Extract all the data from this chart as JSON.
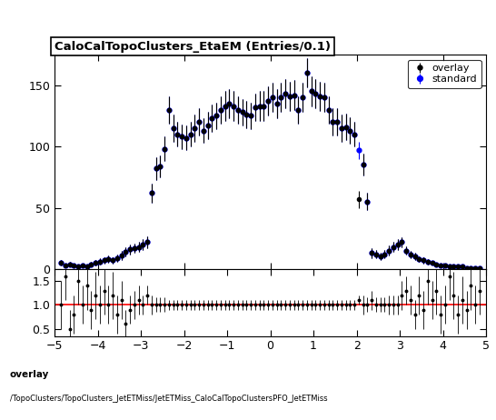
{
  "title": "CaloCalTopoClusters_EtaEM (Entries/0.1)",
  "xlim": [
    -5,
    5
  ],
  "ylim_main": [
    0,
    175
  ],
  "ylim_ratio": [
    0.35,
    1.75
  ],
  "legend_labels": [
    "overlay",
    "standard"
  ],
  "overlay_color": "#000000",
  "standard_color": "#0000ff",
  "ratio_line_color": "#ff0000",
  "footer_line1": "overlay",
  "footer_line2": "/TopoClusters/TopoClusters_JetETMiss/JetETMiss_CaloCalTopoClustersPFO_JetETMiss",
  "overlay_x": [
    -4.85,
    -4.75,
    -4.65,
    -4.55,
    -4.45,
    -4.35,
    -4.25,
    -4.15,
    -4.05,
    -3.95,
    -3.85,
    -3.75,
    -3.65,
    -3.55,
    -3.45,
    -3.35,
    -3.25,
    -3.15,
    -3.05,
    -2.95,
    -2.85,
    -2.75,
    -2.65,
    -2.55,
    -2.45,
    -2.35,
    -2.25,
    -2.15,
    -2.05,
    -1.95,
    -1.85,
    -1.75,
    -1.65,
    -1.55,
    -1.45,
    -1.35,
    -1.25,
    -1.15,
    -1.05,
    -0.95,
    -0.85,
    -0.75,
    -0.65,
    -0.55,
    -0.45,
    -0.35,
    -0.25,
    -0.15,
    -0.05,
    0.05,
    0.15,
    0.25,
    0.35,
    0.45,
    0.55,
    0.65,
    0.75,
    0.85,
    0.95,
    1.05,
    1.15,
    1.25,
    1.35,
    1.45,
    1.55,
    1.65,
    1.75,
    1.85,
    1.95,
    2.05,
    2.15,
    2.25,
    2.35,
    2.45,
    2.55,
    2.65,
    2.75,
    2.85,
    2.95,
    3.05,
    3.15,
    3.25,
    3.35,
    3.45,
    3.55,
    3.65,
    3.75,
    3.85,
    3.95,
    4.05,
    4.15,
    4.25,
    4.35,
    4.45,
    4.55,
    4.65,
    4.75,
    4.85
  ],
  "overlay_y": [
    5,
    3,
    4,
    3,
    2,
    3,
    2,
    4,
    5,
    6,
    7,
    8,
    7,
    9,
    11,
    14,
    16,
    17,
    18,
    20,
    22,
    62,
    82,
    84,
    98,
    130,
    115,
    110,
    108,
    107,
    110,
    115,
    120,
    113,
    117,
    123,
    125,
    130,
    133,
    135,
    133,
    130,
    128,
    126,
    125,
    132,
    133,
    133,
    137,
    140,
    135,
    140,
    143,
    141,
    142,
    130,
    140,
    160,
    145,
    143,
    141,
    140,
    130,
    120,
    120,
    115,
    116,
    113,
    110,
    57,
    85,
    55,
    13,
    12,
    10,
    12,
    15,
    18,
    20,
    22,
    15,
    12,
    10,
    8,
    7,
    6,
    5,
    4,
    3,
    3,
    2,
    2,
    2,
    2,
    1,
    1,
    1,
    1
  ],
  "overlay_yerr": [
    2,
    1.5,
    2,
    1.5,
    1,
    1.5,
    1,
    2,
    2,
    2.5,
    2.5,
    3,
    2.5,
    3,
    3.5,
    4,
    4,
    4,
    4,
    4.5,
    5,
    8,
    9,
    9,
    10,
    11,
    11,
    10,
    10,
    10,
    10,
    11,
    11,
    10,
    11,
    11,
    11,
    11,
    12,
    12,
    12,
    11,
    11,
    11,
    11,
    11,
    12,
    12,
    12,
    12,
    12,
    12,
    12,
    12,
    12,
    11,
    12,
    12,
    12,
    12,
    12,
    12,
    11,
    11,
    11,
    11,
    11,
    11,
    10,
    7,
    9,
    7,
    4,
    3.5,
    3,
    3.5,
    4,
    4,
    4.5,
    4,
    3.5,
    3,
    3,
    2.5,
    2.5,
    2,
    1.5,
    1,
    1.5,
    1.5,
    1,
    1,
    1,
    1,
    1,
    1,
    1,
    1
  ],
  "standard_x": [
    -4.85,
    -4.75,
    -4.65,
    -4.55,
    -4.45,
    -4.35,
    -4.25,
    -4.15,
    -4.05,
    -3.95,
    -3.85,
    -3.75,
    -3.65,
    -3.55,
    -3.45,
    -3.35,
    -3.25,
    -3.15,
    -3.05,
    -2.95,
    -2.85,
    -2.75,
    -2.65,
    -2.55,
    -2.45,
    -2.35,
    -2.25,
    -2.15,
    -2.05,
    -1.95,
    -1.85,
    -1.75,
    -1.65,
    -1.55,
    -1.45,
    -1.35,
    -1.25,
    -1.15,
    -1.05,
    -0.95,
    -0.85,
    -0.75,
    -0.65,
    -0.55,
    -0.45,
    -0.35,
    -0.25,
    -0.15,
    -0.05,
    0.05,
    0.15,
    0.25,
    0.35,
    0.45,
    0.55,
    0.65,
    0.75,
    0.85,
    0.95,
    1.05,
    1.15,
    1.25,
    1.35,
    1.45,
    1.55,
    1.65,
    1.75,
    1.85,
    1.95,
    2.05,
    2.15,
    2.25,
    2.35,
    2.45,
    2.55,
    2.65,
    2.75,
    2.85,
    2.95,
    3.05,
    3.15,
    3.25,
    3.35,
    3.45,
    3.55,
    3.65,
    3.75,
    3.85,
    3.95,
    4.05,
    4.15,
    4.25,
    4.35,
    4.45,
    4.55,
    4.65,
    4.75,
    4.85
  ],
  "standard_y": [
    5,
    3,
    4,
    3,
    2,
    3,
    2,
    4,
    5,
    6,
    7,
    8,
    7,
    9,
    11,
    14,
    16,
    17,
    18,
    20,
    22,
    62,
    82,
    84,
    98,
    130,
    115,
    110,
    108,
    107,
    110,
    115,
    120,
    113,
    117,
    123,
    125,
    130,
    133,
    135,
    133,
    130,
    128,
    126,
    125,
    132,
    133,
    133,
    137,
    140,
    135,
    140,
    143,
    141,
    142,
    130,
    140,
    160,
    145,
    143,
    141,
    140,
    130,
    120,
    120,
    115,
    116,
    113,
    110,
    97,
    85,
    55,
    13,
    12,
    10,
    12,
    15,
    18,
    20,
    22,
    15,
    12,
    10,
    8,
    7,
    6,
    5,
    4,
    3,
    3,
    2,
    2,
    2,
    2,
    1,
    1,
    1,
    1
  ],
  "standard_yerr": [
    2,
    1.5,
    2,
    1.5,
    1,
    1.5,
    1,
    2,
    2,
    2.5,
    2.5,
    3,
    2.5,
    3,
    3.5,
    4,
    4,
    4,
    4,
    4.5,
    5,
    8,
    9,
    9,
    10,
    11,
    11,
    10,
    10,
    10,
    10,
    11,
    11,
    10,
    11,
    11,
    11,
    11,
    12,
    12,
    12,
    11,
    11,
    11,
    11,
    11,
    12,
    12,
    12,
    12,
    12,
    12,
    12,
    12,
    12,
    11,
    12,
    12,
    12,
    12,
    12,
    12,
    11,
    11,
    11,
    11,
    11,
    11,
    10,
    7,
    9,
    7,
    4,
    3.5,
    3,
    3.5,
    4,
    4,
    4.5,
    4,
    3.5,
    3,
    3,
    2.5,
    2.5,
    2,
    1.5,
    1,
    1.5,
    1.5,
    1,
    1,
    1,
    1,
    1,
    1,
    1,
    1
  ],
  "ratio_x": [
    -4.85,
    -4.75,
    -4.65,
    -4.55,
    -4.45,
    -4.35,
    -4.25,
    -4.15,
    -4.05,
    -3.95,
    -3.85,
    -3.75,
    -3.65,
    -3.55,
    -3.45,
    -3.35,
    -3.25,
    -3.15,
    -3.05,
    -2.95,
    -2.85,
    -2.75,
    -2.65,
    -2.55,
    -2.45,
    -2.35,
    -2.25,
    -2.15,
    -2.05,
    -1.95,
    -1.85,
    -1.75,
    -1.65,
    -1.55,
    -1.45,
    -1.35,
    -1.25,
    -1.15,
    -1.05,
    -0.95,
    -0.85,
    -0.75,
    -0.65,
    -0.55,
    -0.45,
    -0.35,
    -0.25,
    -0.15,
    -0.05,
    0.05,
    0.15,
    0.25,
    0.35,
    0.45,
    0.55,
    0.65,
    0.75,
    0.85,
    0.95,
    1.05,
    1.15,
    1.25,
    1.35,
    1.45,
    1.55,
    1.65,
    1.75,
    1.85,
    1.95,
    2.05,
    2.15,
    2.25,
    2.35,
    2.45,
    2.55,
    2.65,
    2.75,
    2.85,
    2.95,
    3.05,
    3.15,
    3.25,
    3.35,
    3.45,
    3.55,
    3.65,
    3.75,
    3.85,
    3.95,
    4.05,
    4.15,
    4.25,
    4.35,
    4.45,
    4.55,
    4.65,
    4.75,
    4.85
  ],
  "ratio_y": [
    1.0,
    1.6,
    0.5,
    0.8,
    1.5,
    1.0,
    1.4,
    0.9,
    1.2,
    1.0,
    1.3,
    1.0,
    1.2,
    0.8,
    1.1,
    0.6,
    0.9,
    1.0,
    1.1,
    1.0,
    1.2,
    1.0,
    1.0,
    1.0,
    1.0,
    1.0,
    1.0,
    1.0,
    1.0,
    1.0,
    1.0,
    1.0,
    1.0,
    1.0,
    1.0,
    1.0,
    1.0,
    1.0,
    1.0,
    1.0,
    1.0,
    1.0,
    1.0,
    1.0,
    1.0,
    1.0,
    1.0,
    1.0,
    1.0,
    1.0,
    1.0,
    1.0,
    1.0,
    1.0,
    1.0,
    1.0,
    1.0,
    1.0,
    1.0,
    1.0,
    1.0,
    1.0,
    1.0,
    1.0,
    1.0,
    1.0,
    1.0,
    1.0,
    1.0,
    1.1,
    1.0,
    1.0,
    1.1,
    1.0,
    1.0,
    1.0,
    1.0,
    1.0,
    1.0,
    1.2,
    1.3,
    1.1,
    0.8,
    1.2,
    0.9,
    1.5,
    1.1,
    1.3,
    0.8,
    1.0,
    1.6,
    1.2,
    0.8,
    1.1,
    0.9,
    1.4,
    1.0,
    1.3
  ],
  "ratio_yerr": [
    0.5,
    0.5,
    0.4,
    0.4,
    0.5,
    0.4,
    0.5,
    0.4,
    0.5,
    0.4,
    0.5,
    0.4,
    0.5,
    0.4,
    0.4,
    0.3,
    0.3,
    0.3,
    0.3,
    0.2,
    0.2,
    0.2,
    0.15,
    0.15,
    0.15,
    0.1,
    0.1,
    0.1,
    0.1,
    0.1,
    0.1,
    0.1,
    0.1,
    0.1,
    0.1,
    0.1,
    0.1,
    0.1,
    0.1,
    0.1,
    0.1,
    0.1,
    0.1,
    0.1,
    0.1,
    0.1,
    0.1,
    0.1,
    0.1,
    0.1,
    0.1,
    0.1,
    0.1,
    0.1,
    0.1,
    0.1,
    0.1,
    0.1,
    0.1,
    0.1,
    0.1,
    0.1,
    0.1,
    0.1,
    0.1,
    0.1,
    0.1,
    0.1,
    0.1,
    0.1,
    0.2,
    0.15,
    0.2,
    0.15,
    0.15,
    0.15,
    0.2,
    0.2,
    0.2,
    0.3,
    0.3,
    0.3,
    0.3,
    0.4,
    0.4,
    0.5,
    0.4,
    0.5,
    0.4,
    0.4,
    0.5,
    0.5,
    0.4,
    0.5,
    0.4,
    0.5,
    0.4,
    0.5
  ]
}
